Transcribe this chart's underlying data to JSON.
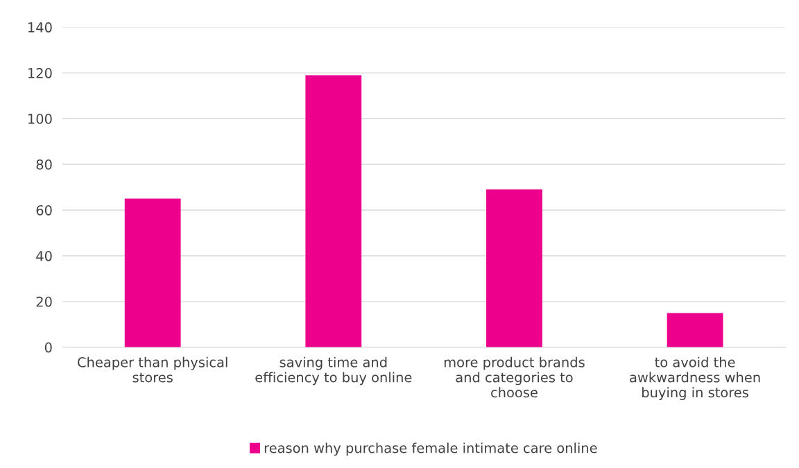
{
  "chart_data": {
    "type": "bar",
    "categories": [
      "Cheaper than physical\nstores",
      "saving time and\nefficiency to buy online",
      "more product brands\nand categories to\nchoose",
      "to avoid the\nawkwardness when\nbuying in stores"
    ],
    "series": [
      {
        "name": "reason why purchase female intimate care online",
        "color": "#ec008c",
        "values": [
          65,
          119,
          69,
          15
        ]
      }
    ],
    "ylim": [
      0,
      140
    ],
    "yticks": [
      0,
      20,
      40,
      60,
      80,
      100,
      120,
      140
    ],
    "grid": "y",
    "legend": "bottom"
  }
}
